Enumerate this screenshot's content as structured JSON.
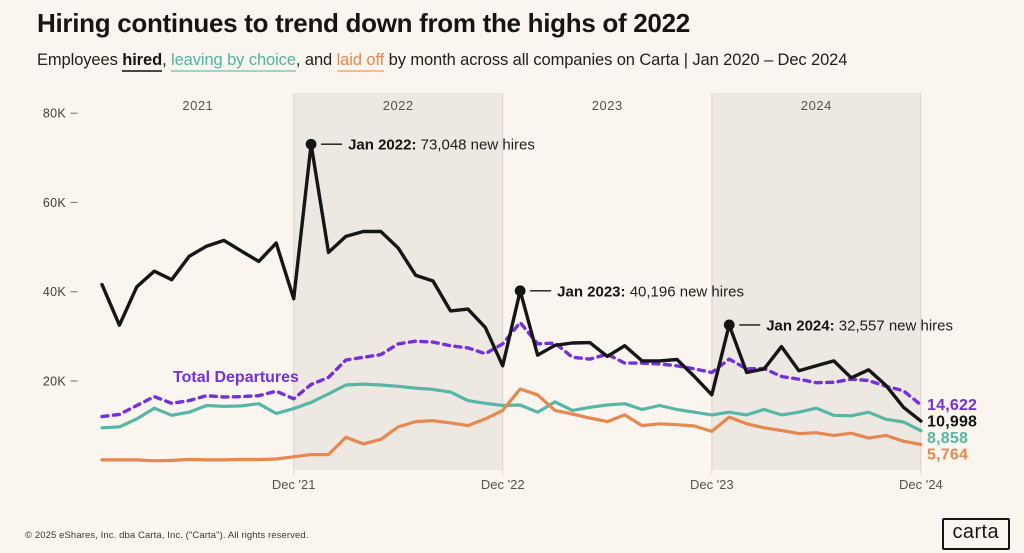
{
  "header": {
    "title": "Hiring continues to trend down from the highs of 2022",
    "subtitle": {
      "part1": "Employees ",
      "hired": "hired",
      "part2": ", ",
      "leaving": "leaving by choice",
      "part3": ", and ",
      "laid_off": "laid off",
      "part4": " by month across all companies on Carta | Jan 2020 – Dec 2024"
    }
  },
  "chart_data": {
    "type": "line",
    "title": "Hiring continues to trend down from the highs of 2022",
    "x_unit": "month",
    "months": [
      "Jan 2021",
      "Feb 2021",
      "Mar 2021",
      "Apr 2021",
      "May 2021",
      "Jun 2021",
      "Jul 2021",
      "Aug 2021",
      "Sep 2021",
      "Oct 2021",
      "Nov 2021",
      "Dec 2021",
      "Jan 2022",
      "Feb 2022",
      "Mar 2022",
      "Apr 2022",
      "May 2022",
      "Jun 2022",
      "Jul 2022",
      "Aug 2022",
      "Sep 2022",
      "Oct 2022",
      "Nov 2022",
      "Dec 2022",
      "Jan 2023",
      "Feb 2023",
      "Mar 2023",
      "Apr 2023",
      "May 2023",
      "Jun 2023",
      "Jul 2023",
      "Aug 2023",
      "Sep 2023",
      "Oct 2023",
      "Nov 2023",
      "Dec 2023",
      "Jan 2024",
      "Feb 2024",
      "Mar 2024",
      "Apr 2024",
      "May 2024",
      "Jun 2024",
      "Jul 2024",
      "Aug 2024",
      "Sep 2024",
      "Oct 2024",
      "Nov 2024",
      "Dec 2024"
    ],
    "ylim": [
      0,
      80000
    ],
    "grid": false,
    "colors": {
      "background": "#FAF5EE",
      "band": "#EDE8E1",
      "hired": "#161616",
      "total_departures": "#7430DB",
      "leaving_by_choice": "#57B6A5",
      "laid_off": "#E6884F"
    },
    "y_ticks": [
      {
        "label": "80K",
        "value": 80000
      },
      {
        "label": "60K",
        "value": 60000
      },
      {
        "label": "40K",
        "value": 40000
      },
      {
        "label": "20K",
        "value": 20000
      }
    ],
    "x_ticks": [
      {
        "label": "Dec '21",
        "month_index": 11
      },
      {
        "label": "Dec '22",
        "month_index": 23
      },
      {
        "label": "Dec '23",
        "month_index": 35
      },
      {
        "label": "Dec '24",
        "month_index": 47
      }
    ],
    "year_bands": [
      {
        "year": "2021",
        "shaded": false
      },
      {
        "year": "2022",
        "shaded": true
      },
      {
        "year": "2023",
        "shaded": false
      },
      {
        "year": "2024",
        "shaded": true
      }
    ],
    "series": [
      {
        "id": "total_departures",
        "name": "Total Departures",
        "color": "#7430DB",
        "dashed": true,
        "width": 3.4,
        "values": [
          12000,
          12500,
          14500,
          16500,
          15000,
          15600,
          16700,
          16400,
          16500,
          16700,
          17700,
          16000,
          19200,
          20800,
          24700,
          25300,
          25900,
          28300,
          28900,
          28700,
          27900,
          27400,
          26100,
          28300,
          33100,
          28300,
          28500,
          25300,
          24900,
          26000,
          24000,
          24000,
          23800,
          23400,
          22700,
          21900,
          24900,
          22700,
          22800,
          21000,
          20400,
          19600,
          19700,
          20400,
          20100,
          18800,
          17800,
          14622
        ]
      },
      {
        "id": "leaving_by_choice",
        "name": "Leaving by choice",
        "color": "#57B6A5",
        "dashed": false,
        "width": 3.2,
        "values": [
          9500,
          9700,
          11500,
          13900,
          12300,
          13000,
          14500,
          14300,
          14400,
          14900,
          12700,
          13800,
          15200,
          17100,
          19100,
          19300,
          19100,
          18800,
          18400,
          18100,
          17500,
          15600,
          15000,
          14500,
          14600,
          13000,
          15300,
          13400,
          14100,
          14600,
          14900,
          13600,
          14500,
          13600,
          13000,
          12400,
          13000,
          12400,
          13600,
          12400,
          13000,
          13900,
          12300,
          12200,
          13000,
          11400,
          10800,
          8858
        ]
      },
      {
        "id": "laid_off",
        "name": "Laid off",
        "color": "#E6884F",
        "dashed": false,
        "width": 3.2,
        "values": [
          2300,
          2300,
          2300,
          2100,
          2200,
          2400,
          2300,
          2300,
          2400,
          2400,
          2500,
          3000,
          3500,
          3500,
          7400,
          5900,
          6900,
          9700,
          10900,
          11100,
          10600,
          10000,
          11500,
          13400,
          18200,
          16900,
          13400,
          12600,
          11700,
          10900,
          12400,
          10000,
          10400,
          10200,
          9900,
          8700,
          11900,
          10400,
          9500,
          8900,
          8200,
          8400,
          7800,
          8300,
          7200,
          7800,
          6500,
          5764
        ]
      },
      {
        "id": "hired",
        "name": "Hired",
        "color": "#161616",
        "dashed": false,
        "width": 3.4,
        "values": [
          41600,
          32500,
          41100,
          44600,
          42700,
          47900,
          50200,
          51500,
          49100,
          46800,
          50900,
          38400,
          73048,
          48800,
          52400,
          53500,
          53500,
          49800,
          43700,
          42400,
          35700,
          36100,
          32000,
          23400,
          40196,
          25800,
          28000,
          28500,
          28600,
          25500,
          27900,
          24500,
          24500,
          24800,
          21000,
          16900,
          32557,
          21900,
          22700,
          27700,
          22300,
          23400,
          24500,
          20700,
          22500,
          19000,
          14100,
          10998
        ]
      }
    ],
    "series_label": {
      "text": "Total Departures",
      "color": "#7430DB",
      "x": 173,
      "y": 382
    },
    "annotations": [
      {
        "label_bold": "Jan 2022:",
        "label_rest": " 73,048 new hires",
        "month_index": 12,
        "value": 73048
      },
      {
        "label_bold": "Jan 2023:",
        "label_rest": " 40,196 new hires",
        "month_index": 24,
        "value": 40196
      },
      {
        "label_bold": "Jan 2024:",
        "label_rest": " 32,557 new hires",
        "month_index": 36,
        "value": 32557
      }
    ],
    "end_labels": [
      {
        "text": "14,622",
        "series": "total_departures",
        "color": "#7430DB",
        "value": 14622
      },
      {
        "text": "10,998",
        "series": "hired",
        "color": "#161616",
        "value": 10998
      },
      {
        "text": "8,858",
        "series": "leaving_by_choice",
        "color": "#57B6A5",
        "value": 8858
      },
      {
        "text": "5,764",
        "series": "laid_off",
        "color": "#E6884F",
        "value": 5764
      }
    ]
  },
  "footer": {
    "copyright": "© 2025 eShares, Inc. dba Carta, Inc. (\"Carta\"). All rights reserved.",
    "logo_text": "carta"
  }
}
